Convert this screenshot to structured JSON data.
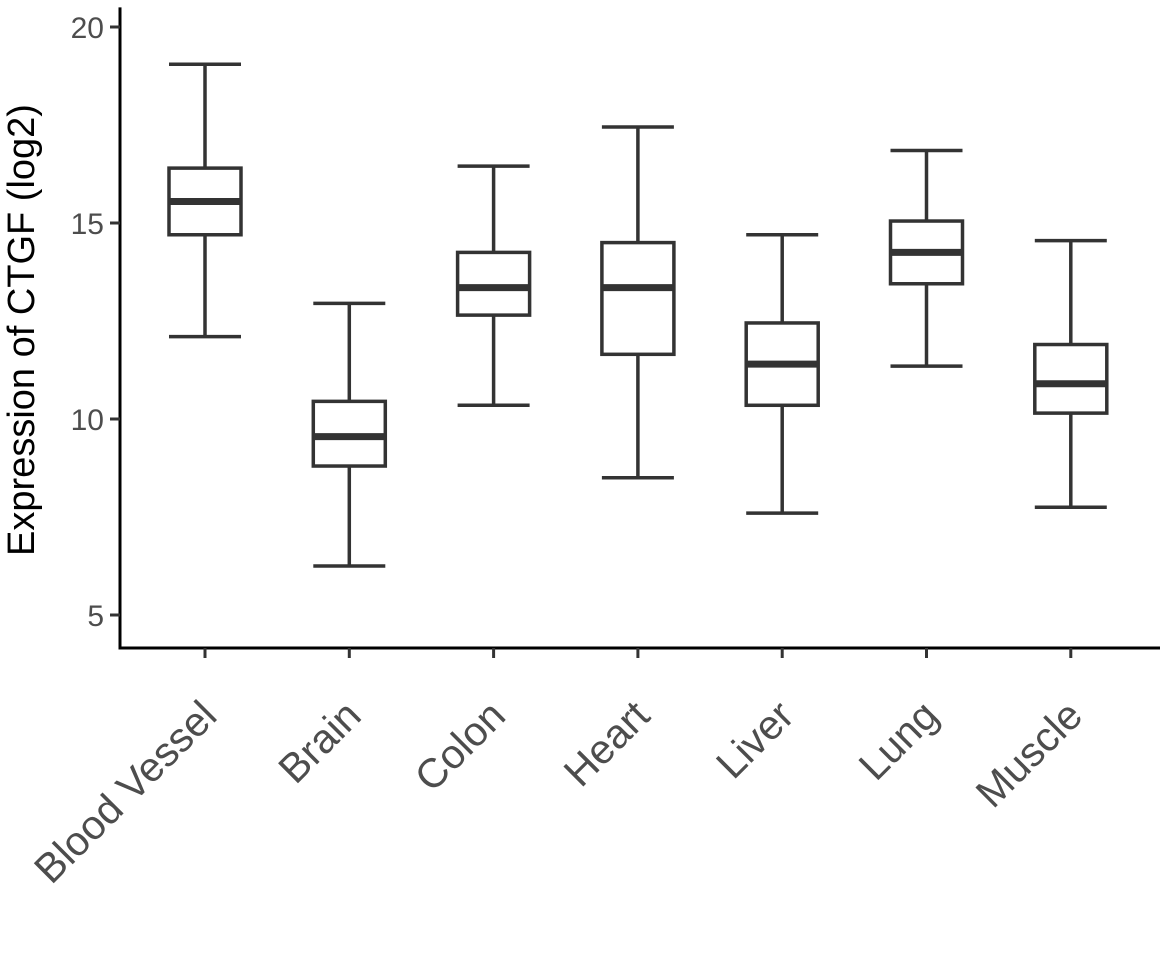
{
  "chart_data": {
    "type": "boxplot",
    "xlabel": "",
    "ylabel": "Expression of CTGF (log2)",
    "ylim": [
      4.2,
      20.5
    ],
    "yticks": [
      5,
      10,
      15,
      20
    ],
    "ytick_labels": [
      "5",
      "10",
      "15",
      "20"
    ],
    "grid": false,
    "categories": [
      "Blood Vessel",
      "Brain",
      "Colon",
      "Heart",
      "Liver",
      "Lung",
      "Muscle"
    ],
    "boxes": [
      {
        "category": "Blood Vessel",
        "min": 12.1,
        "q1": 14.7,
        "median": 15.55,
        "q3": 16.4,
        "max": 19.05
      },
      {
        "category": "Brain",
        "min": 6.25,
        "q1": 8.8,
        "median": 9.55,
        "q3": 10.45,
        "max": 12.95
      },
      {
        "category": "Colon",
        "min": 10.35,
        "q1": 12.65,
        "median": 13.35,
        "q3": 14.25,
        "max": 16.45
      },
      {
        "category": "Heart",
        "min": 8.5,
        "q1": 11.65,
        "median": 13.35,
        "q3": 14.5,
        "max": 17.45
      },
      {
        "category": "Liver",
        "min": 7.6,
        "q1": 10.35,
        "median": 11.4,
        "q3": 12.45,
        "max": 14.7
      },
      {
        "category": "Lung",
        "min": 11.35,
        "q1": 13.45,
        "median": 14.25,
        "q3": 15.05,
        "max": 16.85
      },
      {
        "category": "Muscle",
        "min": 7.75,
        "q1": 10.15,
        "median": 10.9,
        "q3": 11.9,
        "max": 14.55
      }
    ],
    "colors": {
      "box_stroke": "#333333",
      "axis": "#000000",
      "tick_text": "#4d4d4d",
      "title_text": "#000000",
      "background": "#ffffff"
    }
  }
}
